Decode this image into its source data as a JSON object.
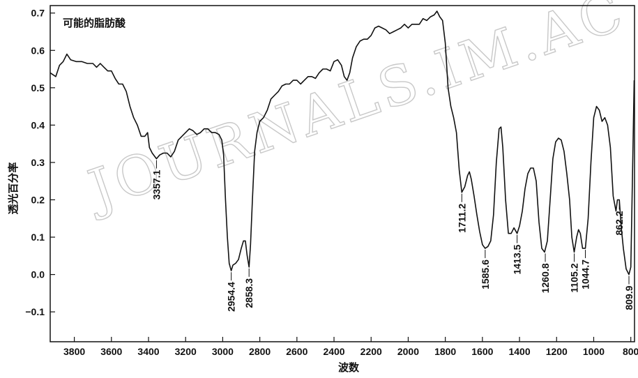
{
  "chart_data": {
    "type": "line",
    "title": "可能的脂肪酸",
    "xlabel": "波数",
    "ylabel": "透光百分率",
    "xlim": [
      3930,
      780
    ],
    "ylim": [
      -0.18,
      0.72
    ],
    "x_reversed": true,
    "grid": false,
    "watermark": "JOURNALS.IM.AC",
    "xticks": [
      3800,
      3600,
      3400,
      3200,
      3000,
      2800,
      2600,
      2400,
      2200,
      2000,
      1800,
      1600,
      1400,
      1200,
      1000,
      800
    ],
    "yticks": [
      0.7,
      0.6,
      0.5,
      0.4,
      0.3,
      0.2,
      0.1,
      0.0,
      -0.1
    ],
    "ytick_labels": [
      "0.7",
      "0.6",
      "0.5",
      "0.4",
      "0.3",
      "0.2",
      "0.1",
      "0.0",
      "−0.1"
    ],
    "series": [
      {
        "points": [
          [
            3930,
            0.54
          ],
          [
            3900,
            0.53
          ],
          [
            3880,
            0.56
          ],
          [
            3860,
            0.57
          ],
          [
            3840,
            0.59
          ],
          [
            3820,
            0.575
          ],
          [
            3790,
            0.57
          ],
          [
            3760,
            0.57
          ],
          [
            3730,
            0.565
          ],
          [
            3700,
            0.565
          ],
          [
            3680,
            0.555
          ],
          [
            3660,
            0.565
          ],
          [
            3640,
            0.555
          ],
          [
            3620,
            0.545
          ],
          [
            3600,
            0.545
          ],
          [
            3580,
            0.525
          ],
          [
            3560,
            0.51
          ],
          [
            3540,
            0.51
          ],
          [
            3520,
            0.49
          ],
          [
            3500,
            0.45
          ],
          [
            3480,
            0.42
          ],
          [
            3460,
            0.4
          ],
          [
            3440,
            0.37
          ],
          [
            3420,
            0.37
          ],
          [
            3405,
            0.38
          ],
          [
            3395,
            0.34
          ],
          [
            3380,
            0.325
          ],
          [
            3357,
            0.31
          ],
          [
            3340,
            0.32
          ],
          [
            3320,
            0.325
          ],
          [
            3300,
            0.325
          ],
          [
            3280,
            0.315
          ],
          [
            3260,
            0.33
          ],
          [
            3240,
            0.36
          ],
          [
            3220,
            0.37
          ],
          [
            3200,
            0.38
          ],
          [
            3180,
            0.39
          ],
          [
            3160,
            0.385
          ],
          [
            3140,
            0.375
          ],
          [
            3120,
            0.38
          ],
          [
            3100,
            0.39
          ],
          [
            3080,
            0.39
          ],
          [
            3060,
            0.38
          ],
          [
            3040,
            0.38
          ],
          [
            3020,
            0.375
          ],
          [
            3005,
            0.36
          ],
          [
            2995,
            0.32
          ],
          [
            2985,
            0.2
          ],
          [
            2975,
            0.1
          ],
          [
            2965,
            0.03
          ],
          [
            2954,
            0.01
          ],
          [
            2945,
            0.025
          ],
          [
            2930,
            0.03
          ],
          [
            2915,
            0.04
          ],
          [
            2900,
            0.07
          ],
          [
            2888,
            0.09
          ],
          [
            2878,
            0.09
          ],
          [
            2868,
            0.05
          ],
          [
            2858,
            0.02
          ],
          [
            2850,
            0.08
          ],
          [
            2840,
            0.2
          ],
          [
            2828,
            0.33
          ],
          [
            2815,
            0.38
          ],
          [
            2800,
            0.41
          ],
          [
            2780,
            0.42
          ],
          [
            2760,
            0.44
          ],
          [
            2740,
            0.47
          ],
          [
            2720,
            0.48
          ],
          [
            2700,
            0.49
          ],
          [
            2680,
            0.505
          ],
          [
            2660,
            0.51
          ],
          [
            2640,
            0.51
          ],
          [
            2620,
            0.52
          ],
          [
            2600,
            0.52
          ],
          [
            2580,
            0.51
          ],
          [
            2560,
            0.52
          ],
          [
            2540,
            0.53
          ],
          [
            2520,
            0.53
          ],
          [
            2500,
            0.525
          ],
          [
            2480,
            0.54
          ],
          [
            2460,
            0.55
          ],
          [
            2440,
            0.55
          ],
          [
            2420,
            0.545
          ],
          [
            2400,
            0.57
          ],
          [
            2380,
            0.575
          ],
          [
            2360,
            0.56
          ],
          [
            2345,
            0.53
          ],
          [
            2330,
            0.52
          ],
          [
            2315,
            0.54
          ],
          [
            2300,
            0.58
          ],
          [
            2280,
            0.61
          ],
          [
            2260,
            0.625
          ],
          [
            2240,
            0.63
          ],
          [
            2220,
            0.63
          ],
          [
            2200,
            0.64
          ],
          [
            2180,
            0.66
          ],
          [
            2160,
            0.665
          ],
          [
            2140,
            0.66
          ],
          [
            2120,
            0.655
          ],
          [
            2100,
            0.645
          ],
          [
            2080,
            0.65
          ],
          [
            2060,
            0.655
          ],
          [
            2040,
            0.66
          ],
          [
            2020,
            0.67
          ],
          [
            2000,
            0.66
          ],
          [
            1980,
            0.67
          ],
          [
            1960,
            0.67
          ],
          [
            1940,
            0.67
          ],
          [
            1920,
            0.685
          ],
          [
            1900,
            0.68
          ],
          [
            1880,
            0.69
          ],
          [
            1860,
            0.695
          ],
          [
            1845,
            0.705
          ],
          [
            1830,
            0.69
          ],
          [
            1815,
            0.68
          ],
          [
            1800,
            0.62
          ],
          [
            1785,
            0.5
          ],
          [
            1770,
            0.45
          ],
          [
            1755,
            0.42
          ],
          [
            1740,
            0.38
          ],
          [
            1725,
            0.28
          ],
          [
            1711,
            0.22
          ],
          [
            1695,
            0.235
          ],
          [
            1680,
            0.265
          ],
          [
            1670,
            0.275
          ],
          [
            1660,
            0.255
          ],
          [
            1645,
            0.21
          ],
          [
            1630,
            0.16
          ],
          [
            1615,
            0.115
          ],
          [
            1600,
            0.08
          ],
          [
            1585,
            0.07
          ],
          [
            1570,
            0.075
          ],
          [
            1555,
            0.09
          ],
          [
            1540,
            0.16
          ],
          [
            1525,
            0.3
          ],
          [
            1510,
            0.39
          ],
          [
            1500,
            0.395
          ],
          [
            1490,
            0.34
          ],
          [
            1475,
            0.2
          ],
          [
            1460,
            0.11
          ],
          [
            1445,
            0.11
          ],
          [
            1430,
            0.125
          ],
          [
            1413,
            0.11
          ],
          [
            1400,
            0.13
          ],
          [
            1385,
            0.17
          ],
          [
            1370,
            0.23
          ],
          [
            1355,
            0.27
          ],
          [
            1340,
            0.285
          ],
          [
            1325,
            0.285
          ],
          [
            1310,
            0.25
          ],
          [
            1295,
            0.14
          ],
          [
            1280,
            0.07
          ],
          [
            1265,
            0.06
          ],
          [
            1250,
            0.09
          ],
          [
            1235,
            0.2
          ],
          [
            1220,
            0.31
          ],
          [
            1205,
            0.355
          ],
          [
            1190,
            0.365
          ],
          [
            1175,
            0.36
          ],
          [
            1160,
            0.33
          ],
          [
            1145,
            0.27
          ],
          [
            1130,
            0.2
          ],
          [
            1118,
            0.1
          ],
          [
            1105,
            0.06
          ],
          [
            1092,
            0.1
          ],
          [
            1082,
            0.12
          ],
          [
            1072,
            0.11
          ],
          [
            1060,
            0.07
          ],
          [
            1045,
            0.07
          ],
          [
            1030,
            0.15
          ],
          [
            1015,
            0.3
          ],
          [
            1000,
            0.42
          ],
          [
            985,
            0.45
          ],
          [
            970,
            0.44
          ],
          [
            955,
            0.41
          ],
          [
            940,
            0.42
          ],
          [
            925,
            0.4
          ],
          [
            910,
            0.34
          ],
          [
            895,
            0.21
          ],
          [
            880,
            0.17
          ],
          [
            872,
            0.2
          ],
          [
            862,
            0.2
          ],
          [
            852,
            0.13
          ],
          [
            840,
            0.07
          ],
          [
            825,
            0.015
          ],
          [
            810,
            0.0
          ],
          [
            800,
            0.02
          ],
          [
            795,
            0.15
          ],
          [
            788,
            0.35
          ],
          [
            782,
            0.52
          ]
        ]
      }
    ],
    "peak_labels": [
      {
        "text": "3357.1",
        "x": 3357,
        "y": 0.31
      },
      {
        "text": "2954.4",
        "x": 2954,
        "y": 0.01
      },
      {
        "text": "2858.3",
        "x": 2858,
        "y": 0.02
      },
      {
        "text": "1711.2",
        "x": 1711,
        "y": 0.22
      },
      {
        "text": "1585.6",
        "x": 1585,
        "y": 0.07
      },
      {
        "text": "1413.5",
        "x": 1413,
        "y": 0.11
      },
      {
        "text": "1260.8",
        "x": 1261,
        "y": 0.06
      },
      {
        "text": "1105.2",
        "x": 1105,
        "y": 0.06
      },
      {
        "text": "1044.7",
        "x": 1045,
        "y": 0.07
      },
      {
        "text": "862.2",
        "x": 862,
        "y": 0.2
      },
      {
        "text": "809.9",
        "x": 810,
        "y": 0.0
      }
    ]
  }
}
